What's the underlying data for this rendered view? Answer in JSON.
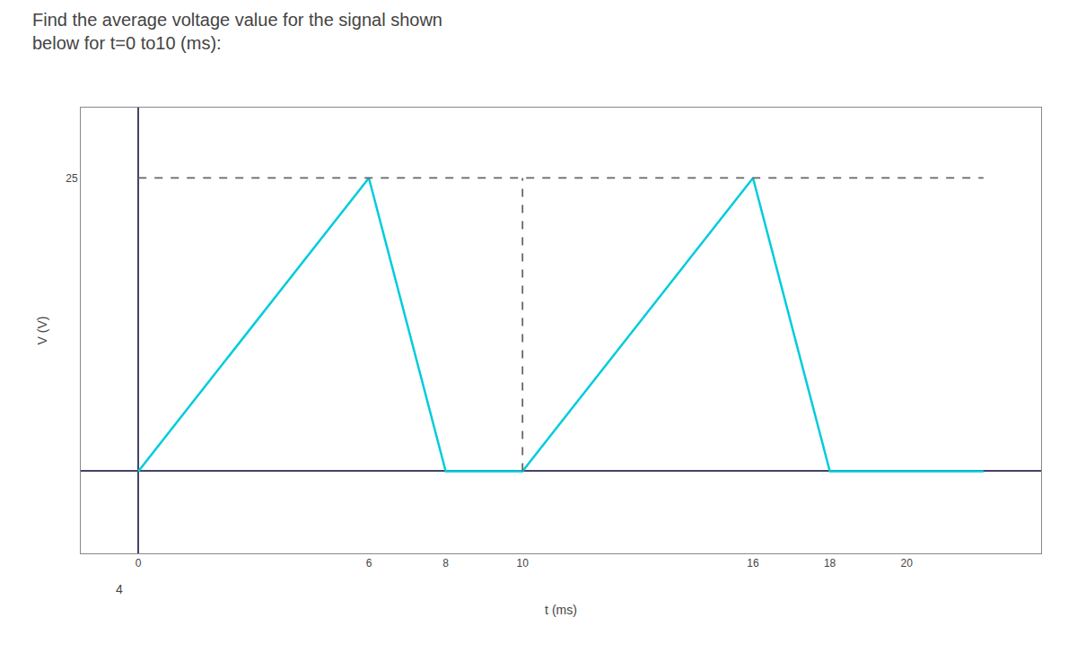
{
  "chart_data": {
    "type": "line",
    "title": "Find the average voltage value for the signal shown",
    "subtitle": "below for t=0 to10 (ms):",
    "x_label": "t (ms)",
    "y_label": "V (V)",
    "series": [
      {
        "color": "#00CCDD",
        "line_style": "solid",
        "x": [
          0,
          6,
          8,
          10,
          16,
          18,
          20,
          22
        ],
        "values": [
          0,
          25,
          0,
          0,
          25,
          0,
          0,
          0
        ]
      },
      {
        "color": "#666666",
        "line_style": "dashed",
        "x": [
          0,
          22
        ],
        "values": [
          25,
          25
        ]
      },
      {
        "color": "#666666",
        "line_style": "dashed",
        "x": [
          10,
          10
        ],
        "values": [
          0,
          25
        ]
      }
    ],
    "xlim": [
      -1.5,
      23.5
    ],
    "ylim": [
      -7,
      31
    ],
    "xticks": [
      0,
      6,
      8,
      10,
      16,
      18,
      20
    ],
    "yticks": [
      25
    ],
    "annotations": [
      {
        "text": "4",
        "x": -0.5
      }
    ],
    "grid": false
  }
}
